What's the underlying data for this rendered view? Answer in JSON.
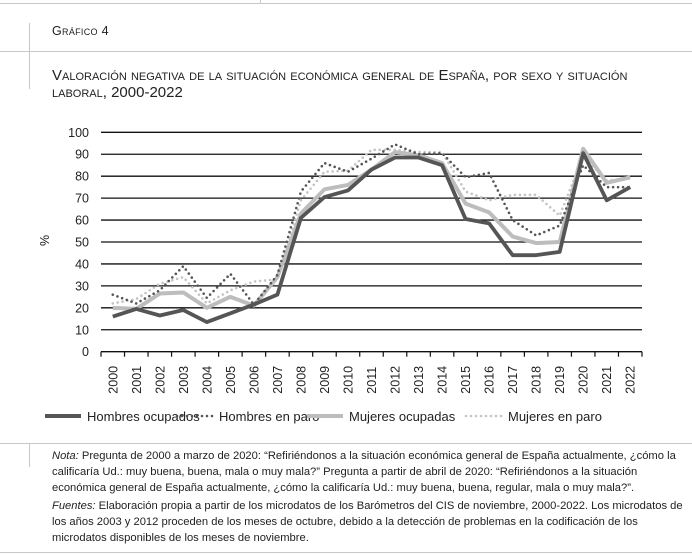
{
  "figure_label": "Gráfico 4",
  "title": "Valoración negativa de la situación económica general de España, por sexo y situación laboral, 2000-2022",
  "notes": {
    "nota_label": "Nota:",
    "nota_text": " Pregunta de 2000 a marzo de 2020: “Refiriéndonos a la situación económica general de España actualmente, ¿cómo la calificaría Ud.: muy buena, buena, mala o muy mala?” Pregunta a partir de abril de 2020: “Refiriéndonos a la situación económica general de España actualmente, ¿cómo la calificaría Ud.: muy buena, buena, regular, mala o muy mala?”.",
    "fuentes_label": "Fuentes:",
    "fuentes_text": " Elaboración propia a partir de los microdatos de los Barómetros del CIS de noviembre, 2000-2022. Los microdatos de los años 2003 y 2012 proceden de los meses de octubre, debido a la detección de problemas en la codificación de los microdatos disponibles de los meses de noviembre."
  },
  "chart_data": {
    "type": "line",
    "ylabel": "%",
    "ylim": [
      0,
      100
    ],
    "yticks": [
      0,
      10,
      20,
      30,
      40,
      50,
      60,
      70,
      80,
      90,
      100
    ],
    "grid": true,
    "legend_position": "bottom",
    "categories": [
      "2000",
      "2001",
      "2002",
      "2003",
      "2004",
      "2005",
      "2006",
      "2007",
      "2008",
      "2009",
      "2010",
      "2011",
      "2012",
      "2013",
      "2014",
      "2015",
      "2016",
      "2017",
      "2018",
      "2019",
      "2020",
      "2021",
      "2022"
    ],
    "series": [
      {
        "name": "Hombres ocupados",
        "style": "solid",
        "color": "#555555",
        "values": [
          16,
          19.5,
          16.5,
          19,
          13.5,
          17.5,
          21.5,
          26,
          61,
          70.5,
          73.5,
          83,
          88.5,
          88.5,
          85,
          60.5,
          58.5,
          44,
          44,
          45.5,
          90.5,
          69,
          75
        ]
      },
      {
        "name": "Hombres en paro",
        "style": "dotted",
        "color": "#555555",
        "values": [
          26,
          22,
          28,
          39,
          24.5,
          35.5,
          21.5,
          35,
          73,
          86,
          82,
          88,
          94.5,
          90,
          90.5,
          79.5,
          81.5,
          60,
          53,
          57.5,
          85,
          75,
          75
        ]
      },
      {
        "name": "Mujeres ocupadas",
        "style": "solid",
        "color": "#bdbdbd",
        "values": [
          20,
          19.5,
          26.5,
          27,
          20,
          25,
          21,
          34,
          63,
          74,
          76,
          83,
          91,
          89.5,
          86,
          67.5,
          63.5,
          52.5,
          49.5,
          50,
          92.5,
          77,
          79.5
        ]
      },
      {
        "name": "Mujeres en paro",
        "style": "dotted",
        "color": "#c4c4c4",
        "values": [
          22,
          24,
          31,
          34,
          22,
          28,
          32,
          33,
          69,
          82,
          82.5,
          92,
          92,
          91,
          91,
          73,
          69,
          71.5,
          71.5,
          62,
          89,
          78,
          79
        ]
      }
    ]
  }
}
